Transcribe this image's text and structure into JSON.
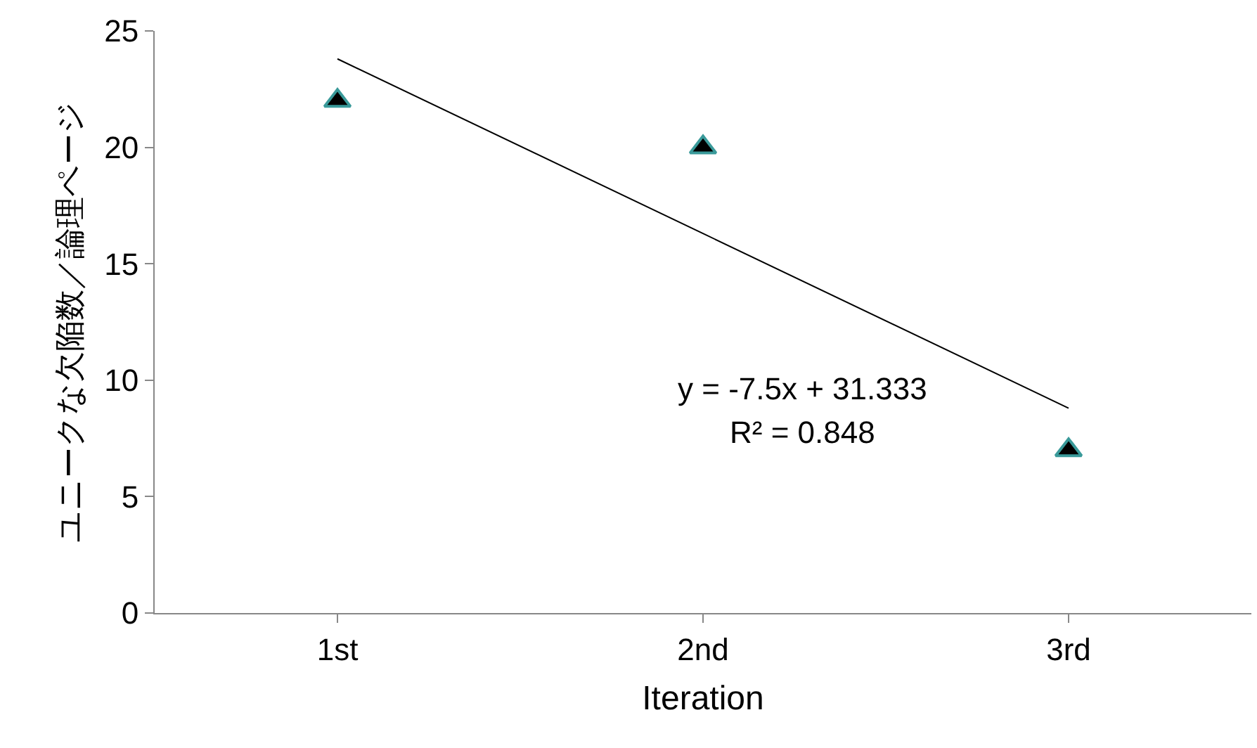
{
  "chart_data": {
    "type": "scatter",
    "xlabel": "Iteration",
    "ylabel": "ユニークな欠陥数／論理ページ",
    "categories": [
      "1st",
      "2nd",
      "3rd"
    ],
    "series": [
      {
        "color": "#000000",
        "marker": "triangle",
        "values": [
          22,
          20,
          7
        ]
      },
      {
        "type": "line",
        "color": "#000000",
        "marker": "none",
        "x": [
          "1st",
          "2nd",
          "3rd"
        ],
        "values": [
          23.8,
          16.3,
          8.8
        ]
      }
    ],
    "ylim": [
      0,
      25
    ],
    "yticks": [
      0,
      5,
      10,
      15,
      20,
      25
    ],
    "grid": false,
    "legend": false,
    "annotations": [
      "y = -7.5x + 31.333",
      "R² = 0.848"
    ]
  }
}
